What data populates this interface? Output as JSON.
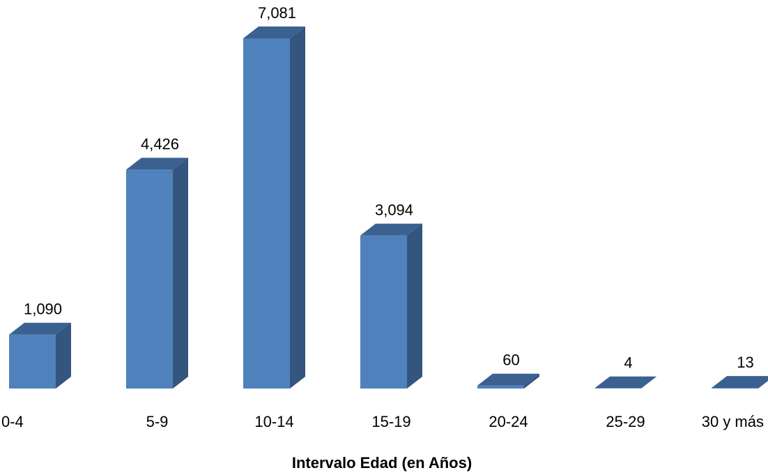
{
  "chart_data": {
    "type": "bar",
    "categories": [
      "0-4",
      "5-9",
      "10-14",
      "15-19",
      "20-24",
      "25-29",
      "30 y más"
    ],
    "values": [
      1090,
      4426,
      7081,
      3094,
      60,
      4,
      13
    ],
    "value_labels": [
      "1,090",
      "4,426",
      "7,081",
      "3,094",
      "60",
      "4",
      "13"
    ],
    "title": "",
    "xlabel": "Intervalo Edad (en Años)",
    "ylabel": "",
    "ylim": [
      0,
      7081
    ],
    "grid": false,
    "legend": "none",
    "three_d": true,
    "colors": {
      "front": "#4f81bd",
      "side": "#34557d",
      "top": "#3b6190"
    }
  }
}
